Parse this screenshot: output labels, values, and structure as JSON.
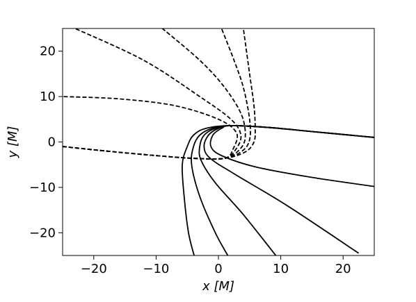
{
  "chart_data": {
    "type": "line",
    "title": "",
    "xlabel": "x [M]",
    "ylabel": "y [M]",
    "xlim": [
      -25,
      25
    ],
    "ylim": [
      -25,
      25
    ],
    "xticks": [
      -20,
      -10,
      0,
      10,
      20
    ],
    "yticks": [
      -20,
      -10,
      0,
      10,
      20
    ],
    "xtick_labels": [
      "−20",
      "−10",
      "0",
      "10",
      "20"
    ],
    "ytick_labels": [
      "−20",
      "−10",
      "0",
      "10",
      "20"
    ],
    "grid": false,
    "line_color": "#000000",
    "series": [
      {
        "style": "dashed",
        "points": [
          [
            -25,
            -1
          ],
          [
            -18,
            -2
          ],
          [
            -10,
            -3
          ],
          [
            -4,
            -3.6
          ],
          [
            1,
            -3.6
          ],
          [
            4.3,
            -2.2
          ],
          [
            5.7,
            0
          ],
          [
            5.9,
            3
          ],
          [
            5.7,
            8
          ],
          [
            5.0,
            15
          ],
          [
            4.0,
            25
          ]
        ]
      },
      {
        "style": "dashed",
        "points": [
          [
            -25,
            -1
          ],
          [
            -18,
            -2
          ],
          [
            -10,
            -3
          ],
          [
            -4,
            -3.6
          ],
          [
            1,
            -3.6
          ],
          [
            3.8,
            -2
          ],
          [
            5.0,
            0.5
          ],
          [
            5.0,
            5
          ],
          [
            4.0,
            12
          ],
          [
            2.5,
            18
          ],
          [
            0.5,
            25
          ]
        ]
      },
      {
        "style": "dashed",
        "points": [
          [
            -25,
            -1
          ],
          [
            -18,
            -2
          ],
          [
            -10,
            -3
          ],
          [
            -4,
            -3.6
          ],
          [
            1,
            -3.6
          ],
          [
            3.3,
            -1.8
          ],
          [
            4.3,
            1
          ],
          [
            3.7,
            6
          ],
          [
            1,
            12
          ],
          [
            -3,
            18
          ],
          [
            -9,
            25
          ]
        ]
      },
      {
        "style": "dashed",
        "points": [
          [
            -25,
            -1
          ],
          [
            -18,
            -2
          ],
          [
            -10,
            -3
          ],
          [
            -4,
            -3.6
          ],
          [
            1,
            -3.6
          ],
          [
            2.8,
            -1.6
          ],
          [
            3.6,
            1.5
          ],
          [
            2.0,
            5
          ],
          [
            -3,
            10
          ],
          [
            -12,
            18
          ],
          [
            -23,
            25
          ]
        ]
      },
      {
        "style": "dashed",
        "points": [
          [
            -25,
            -1
          ],
          [
            -18,
            -2
          ],
          [
            -10,
            -3
          ],
          [
            -4,
            -3.6
          ],
          [
            1,
            -3.6
          ],
          [
            2.4,
            -1.4
          ],
          [
            2.9,
            2
          ],
          [
            0,
            5
          ],
          [
            -7,
            8
          ],
          [
            -16,
            9.5
          ],
          [
            -25,
            10
          ]
        ]
      },
      {
        "style": "solid",
        "points": [
          [
            25,
            1
          ],
          [
            15,
            2.3
          ],
          [
            8,
            3.2
          ],
          [
            2,
            3.6
          ],
          [
            -2,
            3
          ],
          [
            -4,
            1.5
          ],
          [
            -5,
            -1
          ],
          [
            -5.8,
            -5
          ],
          [
            -5.5,
            -12
          ],
          [
            -4.8,
            -20
          ],
          [
            -3.9,
            -25
          ]
        ]
      },
      {
        "style": "solid",
        "points": [
          [
            25,
            1
          ],
          [
            15,
            2.3
          ],
          [
            8,
            3.2
          ],
          [
            2,
            3.6
          ],
          [
            -1,
            3
          ],
          [
            -3,
            1.5
          ],
          [
            -4,
            -1
          ],
          [
            -4.3,
            -5
          ],
          [
            -3,
            -12
          ],
          [
            -0.5,
            -20
          ],
          [
            1.5,
            -25
          ]
        ]
      },
      {
        "style": "solid",
        "points": [
          [
            25,
            1
          ],
          [
            15,
            2.3
          ],
          [
            8,
            3.2
          ],
          [
            2,
            3.6
          ],
          [
            -0.5,
            3
          ],
          [
            -2.3,
            1.5
          ],
          [
            -3,
            -1
          ],
          [
            -2.8,
            -4
          ],
          [
            -0.5,
            -9
          ],
          [
            4,
            -16
          ],
          [
            9.2,
            -25
          ]
        ]
      },
      {
        "style": "solid",
        "points": [
          [
            25,
            1
          ],
          [
            15,
            2.3
          ],
          [
            8,
            3.2
          ],
          [
            2,
            3.6
          ],
          [
            0,
            3
          ],
          [
            -1.6,
            1.5
          ],
          [
            -2.3,
            -1
          ],
          [
            -1.4,
            -3.5
          ],
          [
            2.5,
            -7
          ],
          [
            11,
            -14
          ],
          [
            22.5,
            -24.5
          ]
        ]
      },
      {
        "style": "solid",
        "points": [
          [
            25,
            1
          ],
          [
            15,
            2.3
          ],
          [
            8,
            3.2
          ],
          [
            2,
            3.6
          ],
          [
            0.5,
            3
          ],
          [
            -0.9,
            1.5
          ],
          [
            -1.2,
            -1
          ],
          [
            0.5,
            -3
          ],
          [
            6,
            -5.5
          ],
          [
            15,
            -7.8
          ],
          [
            25,
            -9.8
          ]
        ]
      }
    ]
  }
}
